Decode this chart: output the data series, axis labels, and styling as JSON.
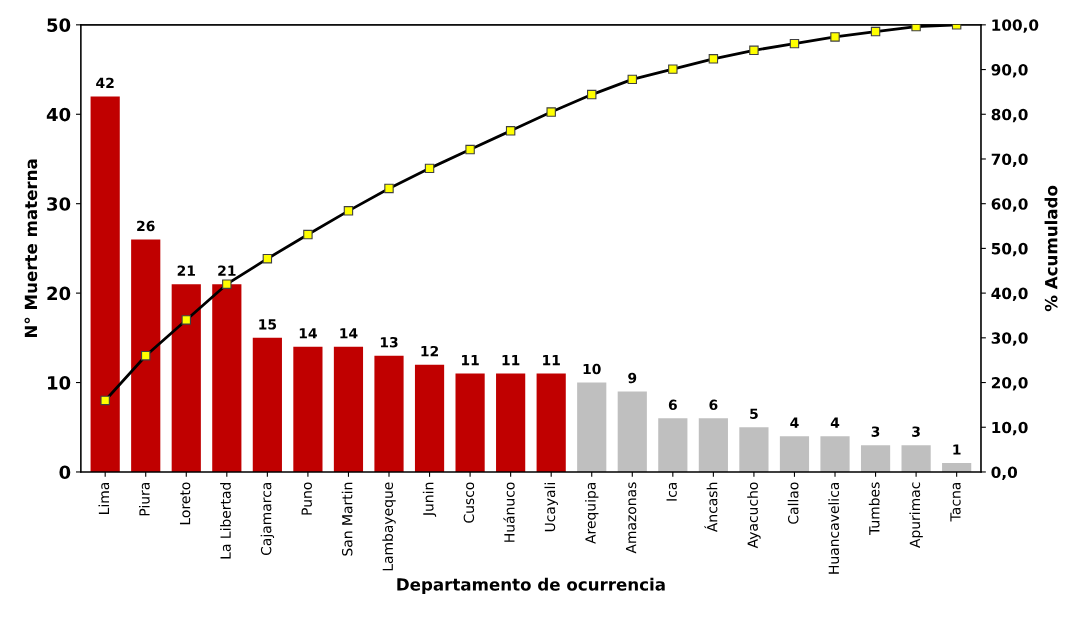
{
  "chart_data": {
    "type": "bar",
    "xlabel": "Departamento de ocurrencia",
    "ylabel": "N° Muerte materna",
    "y2label": "% Acumulado",
    "categories": [
      "Lima",
      "Piura",
      "Loreto",
      "La Libertad",
      "Cajamarca",
      "Puno",
      "San Martin",
      "Lambayeque",
      "Junin",
      "Cusco",
      "Huánuco",
      "Ucayali",
      "Arequipa",
      "Amazonas",
      "Ica",
      "Áncash",
      "Ayacucho",
      "Callao",
      "Huancavelica",
      "Tumbes",
      "Apurimac",
      "Tacna"
    ],
    "series": [
      {
        "colors": [
          "#c00000",
          "#c00000",
          "#c00000",
          "#c00000",
          "#c00000",
          "#c00000",
          "#c00000",
          "#c00000",
          "#c00000",
          "#c00000",
          "#c00000",
          "#c00000",
          "#bfbfbf",
          "#bfbfbf",
          "#bfbfbf",
          "#bfbfbf",
          "#bfbfbf",
          "#bfbfbf",
          "#bfbfbf",
          "#bfbfbf",
          "#bfbfbf",
          "#bfbfbf"
        ],
        "values": [
          42,
          26,
          21,
          21,
          15,
          14,
          14,
          13,
          12,
          11,
          11,
          11,
          10,
          9,
          6,
          6,
          5,
          4,
          4,
          3,
          3,
          1
        ],
        "value_labels": [
          "42",
          "26",
          "21",
          "21",
          "15",
          "14",
          "14",
          "13",
          "12",
          "11",
          "11",
          "11",
          "10",
          "9",
          "6",
          "6",
          "5",
          "4",
          "4",
          "3",
          "3",
          "1"
        ]
      },
      {
        "type": "line",
        "axis": "y2",
        "color": "#000000",
        "marker": "square",
        "values": [
          16.0,
          26.0,
          34.0,
          42.0,
          47.7,
          53.1,
          58.4,
          63.4,
          67.9,
          72.1,
          76.3,
          80.5,
          84.4,
          87.8,
          90.1,
          92.4,
          94.3,
          95.8,
          97.3,
          98.5,
          99.6,
          100.0
        ]
      }
    ],
    "ylim": [
      0,
      50
    ],
    "yticks": [
      0,
      10,
      20,
      30,
      40,
      50
    ],
    "y2lim": [
      0,
      100
    ],
    "y2ticks": [
      {
        "value": 0,
        "label": "0,0"
      },
      {
        "value": 10,
        "label": "10,0"
      },
      {
        "value": 20,
        "label": "20,0"
      },
      {
        "value": 30,
        "label": "30,0"
      },
      {
        "value": 40,
        "label": "40,0"
      },
      {
        "value": 50,
        "label": "50,0"
      },
      {
        "value": 60,
        "label": "60,0"
      },
      {
        "value": 70,
        "label": "70,0"
      },
      {
        "value": 80,
        "label": "80,0"
      },
      {
        "value": 90,
        "label": "90,0"
      },
      {
        "value": 100,
        "label": "100,0"
      }
    ],
    "grid": false
  }
}
